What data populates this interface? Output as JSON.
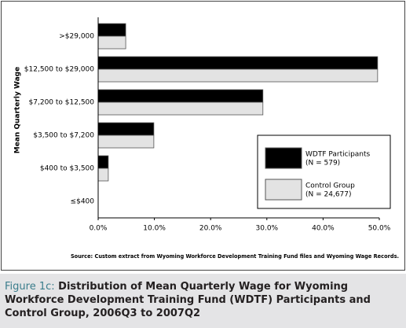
{
  "chart_data": {
    "type": "hbar",
    "y_axis_label": "Mean Quarterly Wage",
    "categories": [
      ">$29,000",
      "$12,500 to $29,000",
      "$7,200 to $12,500",
      "$3,500 to $7,200",
      "$400 to $3,500",
      "≤$400"
    ],
    "series": [
      {
        "name": "WDTF Participants",
        "note": "(N = 579)",
        "color": "#000000",
        "values": [
          4.9,
          49.7,
          29.3,
          9.9,
          1.8,
          0
        ]
      },
      {
        "name": "Control Group",
        "note": "(N = 24,677)",
        "color": "#e3e3e3",
        "values": [
          4.9,
          49.7,
          29.3,
          9.9,
          1.8,
          0
        ]
      }
    ],
    "xlim": [
      0,
      50
    ],
    "xticks": [
      {
        "value": 0,
        "label": "0.0%"
      },
      {
        "value": 10,
        "label": "10.0%"
      },
      {
        "value": 20,
        "label": "20.0%"
      },
      {
        "value": 30,
        "label": "30.0%"
      },
      {
        "value": 40,
        "label": "40.0%"
      },
      {
        "value": 50,
        "label": "50.0%"
      }
    ],
    "legend_position": "lower right",
    "source": "Source: Custom extract from Wyoming Workforce Development Training Fund files and Wyoming Wage Records.",
    "figure_label": "Figure 1c:",
    "caption": "Distribution of Mean Quarterly Wage for Wyoming Workforce Development Training Fund (WDTF) Participants and Control Group, 2006Q3 to 2007Q2"
  }
}
